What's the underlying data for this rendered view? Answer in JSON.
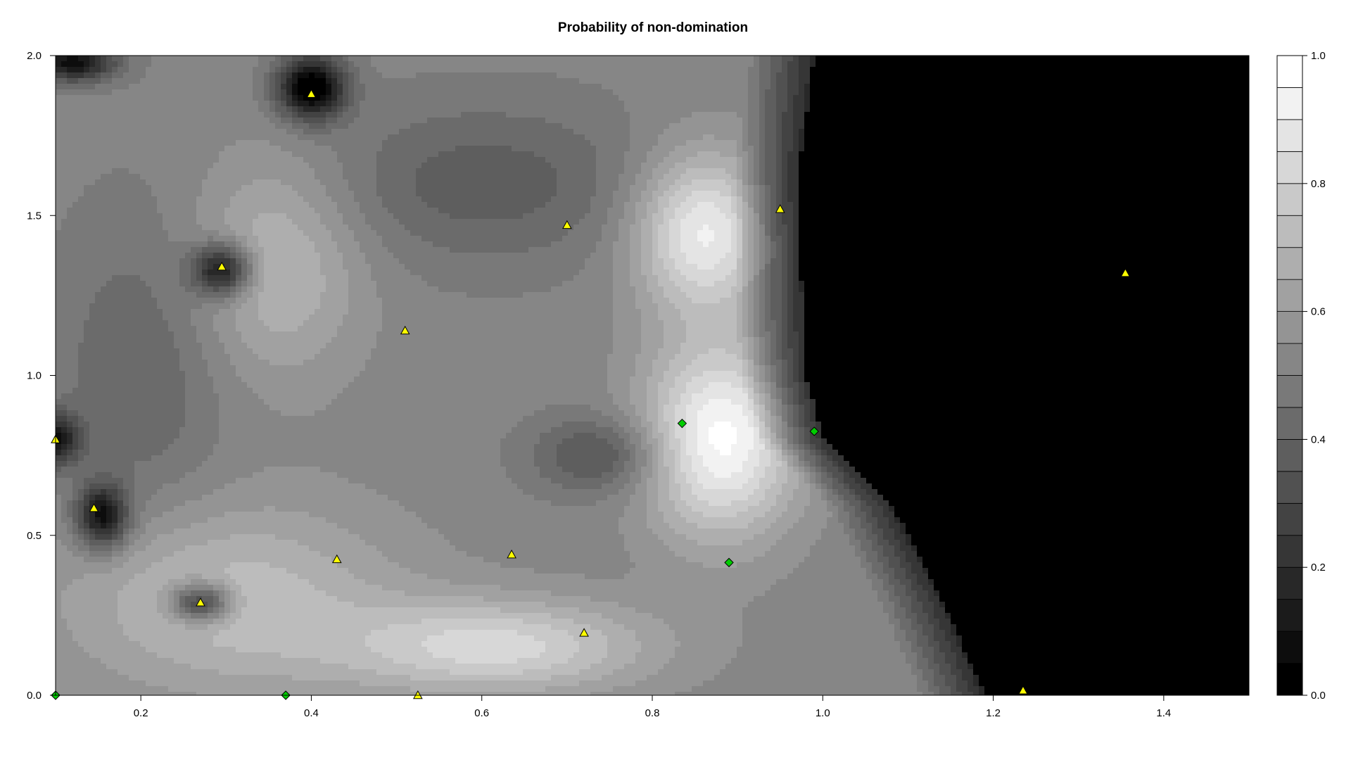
{
  "chart_data": {
    "type": "heatmap",
    "title": "Probability of non-domination",
    "xlabel": "",
    "ylabel": "",
    "xlim": [
      0.1,
      1.5
    ],
    "ylim": [
      0.0,
      2.0
    ],
    "x_ticks": [
      "0.2",
      "0.4",
      "0.6",
      "0.8",
      "1.0",
      "1.2",
      "1.4"
    ],
    "x_tick_values": [
      0.2,
      0.4,
      0.6,
      0.8,
      1.0,
      1.2,
      1.4
    ],
    "y_ticks": [
      "0.0",
      "0.5",
      "1.0",
      "1.5",
      "2.0"
    ],
    "y_tick_values": [
      0.0,
      0.5,
      1.0,
      1.5,
      2.0
    ],
    "colorbar": {
      "range": [
        0.0,
        1.0
      ],
      "levels": 20,
      "ticks": [
        "0.0",
        "0.2",
        "0.4",
        "0.6",
        "0.8",
        "1.0"
      ],
      "tick_values": [
        0.0,
        0.2,
        0.4,
        0.6,
        0.8,
        1.0
      ],
      "color_low": "#000000",
      "color_high": "#ffffff"
    },
    "field": {
      "base": 0.52,
      "black_region_boundary": [
        [
          0.99,
          2.0
        ],
        [
          0.97,
          1.6
        ],
        [
          0.98,
          1.0
        ],
        [
          1.0,
          0.8
        ],
        [
          1.08,
          0.6
        ],
        [
          1.14,
          0.3
        ],
        [
          1.19,
          0.0
        ]
      ],
      "bright_zones": [
        {
          "x": 0.86,
          "y": 1.45,
          "strength": 0.4,
          "rx": 0.08,
          "ry": 0.25
        },
        {
          "x": 0.88,
          "y": 0.8,
          "strength": 0.45,
          "rx": 0.09,
          "ry": 0.3
        },
        {
          "x": 0.62,
          "y": 0.15,
          "strength": 0.3,
          "rx": 0.18,
          "ry": 0.15
        },
        {
          "x": 0.36,
          "y": 1.35,
          "strength": 0.2,
          "rx": 0.1,
          "ry": 0.35
        },
        {
          "x": 0.3,
          "y": 0.3,
          "strength": 0.22,
          "rx": 0.2,
          "ry": 0.3
        }
      ],
      "dark_zones": [
        {
          "x": 0.4,
          "y": 1.9,
          "strength": 0.55,
          "rx": 0.04,
          "ry": 0.1
        },
        {
          "x": 0.295,
          "y": 1.33,
          "strength": 0.45,
          "rx": 0.035,
          "ry": 0.08
        },
        {
          "x": 0.155,
          "y": 0.56,
          "strength": 0.45,
          "rx": 0.03,
          "ry": 0.1
        },
        {
          "x": 0.27,
          "y": 0.29,
          "strength": 0.4,
          "rx": 0.035,
          "ry": 0.06
        },
        {
          "x": 0.1,
          "y": 0.8,
          "strength": 0.4,
          "rx": 0.03,
          "ry": 0.08
        },
        {
          "x": 0.12,
          "y": 1.98,
          "strength": 0.45,
          "rx": 0.05,
          "ry": 0.06
        },
        {
          "x": 0.74,
          "y": 0.75,
          "strength": 0.2,
          "rx": 0.08,
          "ry": 0.12
        },
        {
          "x": 0.6,
          "y": 1.6,
          "strength": 0.15,
          "rx": 0.2,
          "ry": 0.25
        },
        {
          "x": 0.2,
          "y": 1.0,
          "strength": 0.12,
          "rx": 0.1,
          "ry": 0.5
        }
      ]
    },
    "points_triangle": [
      {
        "x": 0.4,
        "y": 1.88
      },
      {
        "x": 0.295,
        "y": 1.34
      },
      {
        "x": 0.7,
        "y": 1.47
      },
      {
        "x": 0.95,
        "y": 1.52
      },
      {
        "x": 0.51,
        "y": 1.14
      },
      {
        "x": 0.1,
        "y": 0.8
      },
      {
        "x": 0.145,
        "y": 0.585
      },
      {
        "x": 0.27,
        "y": 0.29
      },
      {
        "x": 0.43,
        "y": 0.425
      },
      {
        "x": 0.635,
        "y": 0.44
      },
      {
        "x": 0.72,
        "y": 0.195
      },
      {
        "x": 0.525,
        "y": 0.0
      },
      {
        "x": 1.235,
        "y": 0.015
      },
      {
        "x": 1.355,
        "y": 1.32
      }
    ],
    "points_diamond": [
      {
        "x": 0.835,
        "y": 0.85
      },
      {
        "x": 0.99,
        "y": 0.825
      },
      {
        "x": 0.89,
        "y": 0.415
      },
      {
        "x": 0.37,
        "y": 0.0
      },
      {
        "x": 0.1,
        "y": 0.0
      }
    ],
    "triangle_color": "#ffff00",
    "diamond_color": "#00cc00"
  }
}
